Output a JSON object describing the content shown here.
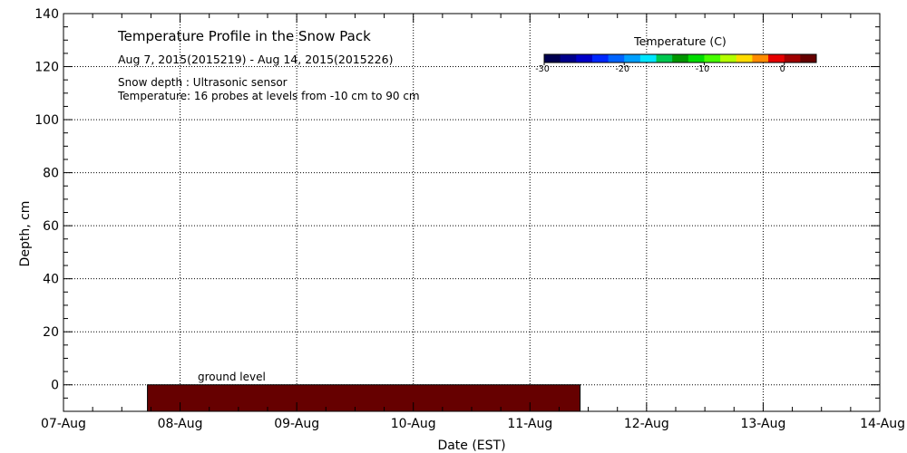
{
  "chart_data": {
    "type": "area",
    "title": "Temperature Profile in the Snow Pack",
    "subtitle": "Aug  7, 2015(2015219) - Aug 14, 2015(2015226)",
    "annotations": [
      "Snow depth : Ultrasonic sensor",
      "Temperature: 16 probes at levels from -10 cm to 90 cm"
    ],
    "ground_label": "ground level",
    "xlabel": "Date (EST)",
    "ylabel": "Depth, cm",
    "x_ticks": [
      "07-Aug",
      "08-Aug",
      "09-Aug",
      "10-Aug",
      "11-Aug",
      "12-Aug",
      "13-Aug",
      "14-Aug"
    ],
    "xlim": [
      0,
      7
    ],
    "ylim": [
      -10,
      140
    ],
    "y_ticks": [
      0,
      20,
      40,
      60,
      80,
      100,
      120,
      140
    ],
    "grid": true,
    "data_span": {
      "start_day": 0.72,
      "end_day": 4.43,
      "top_cm": 0,
      "bottom_cm": -10,
      "color": "#660000"
    },
    "colorbar": {
      "label": "Temperature (C)",
      "min": -30,
      "max": 4,
      "ticks": [
        -30,
        -20,
        -10,
        0
      ],
      "tick_labels": [
        "-30",
        "-20",
        "-10",
        "0"
      ],
      "colors": [
        "#000050",
        "#00008c",
        "#0000c8",
        "#0028ff",
        "#0064ff",
        "#00a0ff",
        "#00e6ff",
        "#00c850",
        "#009600",
        "#00dc00",
        "#46ff00",
        "#b4ff00",
        "#ffdc00",
        "#ff8c00",
        "#e60000",
        "#a00000",
        "#660000"
      ]
    }
  }
}
